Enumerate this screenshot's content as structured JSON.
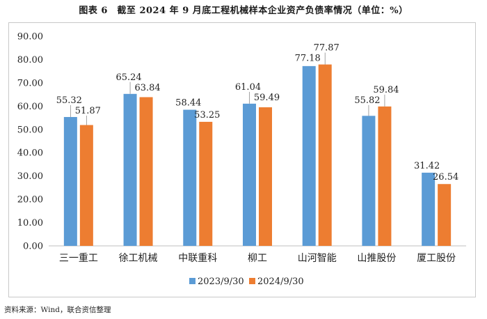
{
  "title": "图表 6　截至 2024 年 9 月底工程机械样本企业资产负债率情况（单位：%）",
  "source": "资料来源：Wind，联合资信整理",
  "chart_data": {
    "type": "bar",
    "title": "图表 6　截至 2024 年 9 月底工程机械样本企业资产负债率情况（单位：%）",
    "xlabel": "",
    "ylabel": "",
    "ylim": [
      0,
      90
    ],
    "yticks": [
      "0.00",
      "10.00",
      "20.00",
      "30.00",
      "40.00",
      "50.00",
      "60.00",
      "70.00",
      "80.00",
      "90.00"
    ],
    "grid": false,
    "legend_position": "bottom",
    "categories": [
      "三一重工",
      "徐工机械",
      "中联重科",
      "柳工",
      "山河智能",
      "山推股份",
      "厦工股份"
    ],
    "series": [
      {
        "name": "2023/9/30",
        "color": "#5b9bd5",
        "values": [
          55.32,
          65.24,
          58.44,
          61.04,
          77.18,
          55.82,
          31.42
        ],
        "labels": [
          "55.32",
          "65.24",
          "58.44",
          "61.04",
          "77.18",
          "55.82",
          "31.42"
        ]
      },
      {
        "name": "2024/9/30",
        "color": "#ed7d31",
        "values": [
          51.87,
          63.84,
          53.25,
          59.49,
          77.87,
          59.84,
          26.54
        ],
        "labels": [
          "51.87",
          "63.84",
          "53.25",
          "59.49",
          "77.87",
          "59.84",
          "26.54"
        ]
      }
    ]
  }
}
